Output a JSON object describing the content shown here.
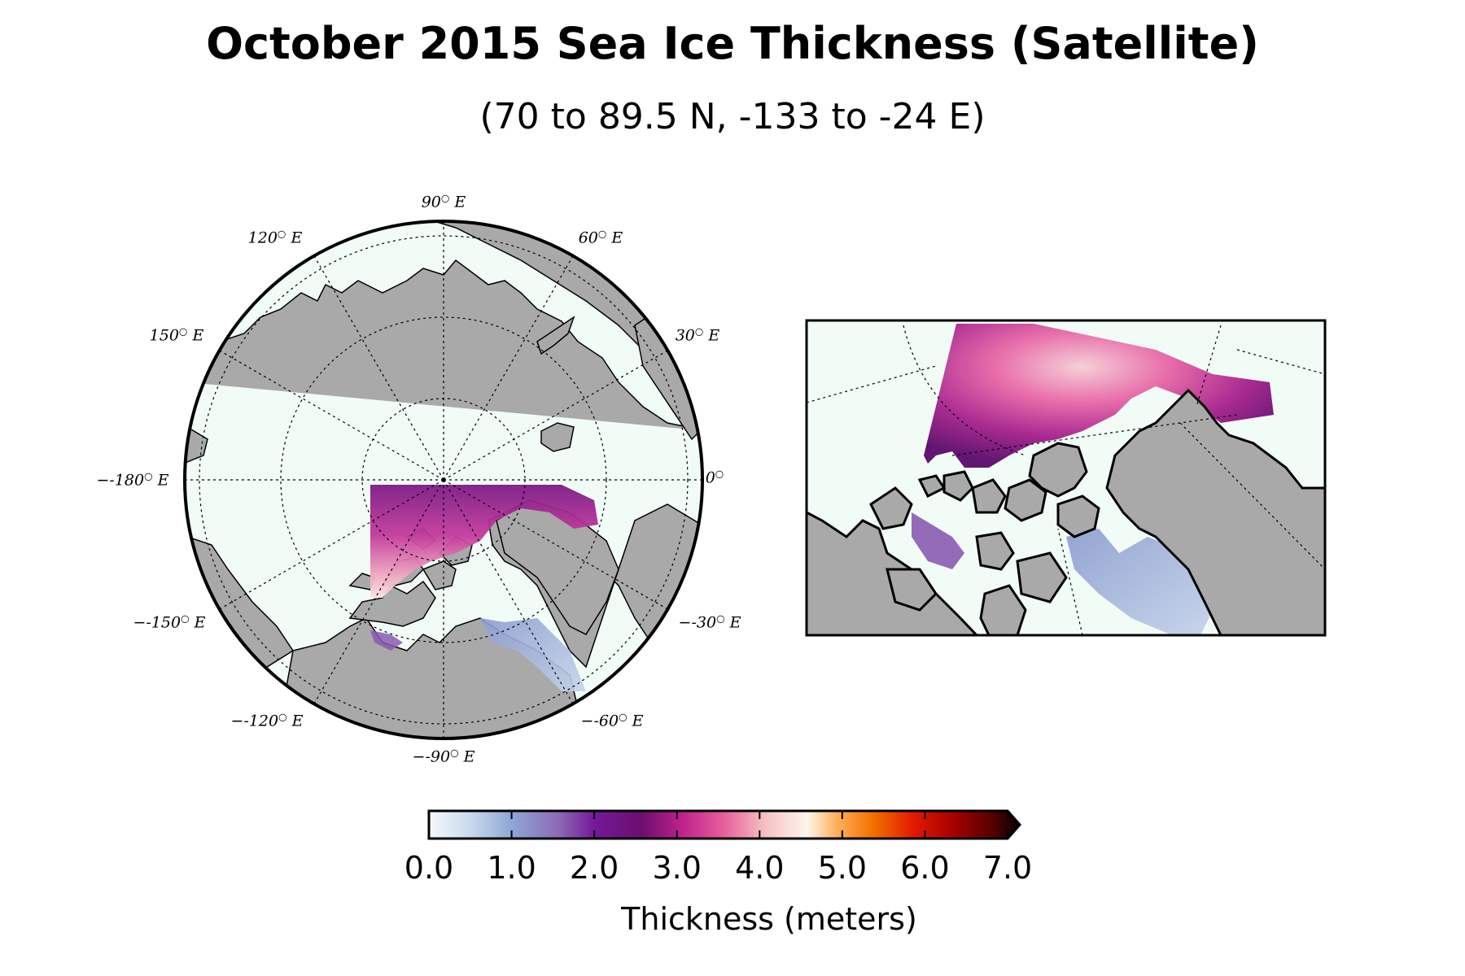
{
  "title": "October 2015 Sea Ice Thickness (Satellite)",
  "subtitle": "(70 to 89.5 N, -133 to -24 E)",
  "polar_map": {
    "longitude_labels": [
      "90",
      "60",
      "30",
      "0",
      "-30",
      "-60",
      "-90",
      "-120",
      "-150",
      "-180",
      "150",
      "120"
    ],
    "longitude_suffix": "E",
    "colors": {
      "land": "#a9a9a9",
      "ocean": "#f2fcf7",
      "coast": "#000000"
    }
  },
  "colorbar": {
    "min": 0.0,
    "max": 7.0,
    "ticks": [
      "0.0",
      "1.0",
      "2.0",
      "3.0",
      "4.0",
      "5.0",
      "6.0",
      "7.0"
    ],
    "label": "Thickness (meters)",
    "extend": "max"
  }
}
